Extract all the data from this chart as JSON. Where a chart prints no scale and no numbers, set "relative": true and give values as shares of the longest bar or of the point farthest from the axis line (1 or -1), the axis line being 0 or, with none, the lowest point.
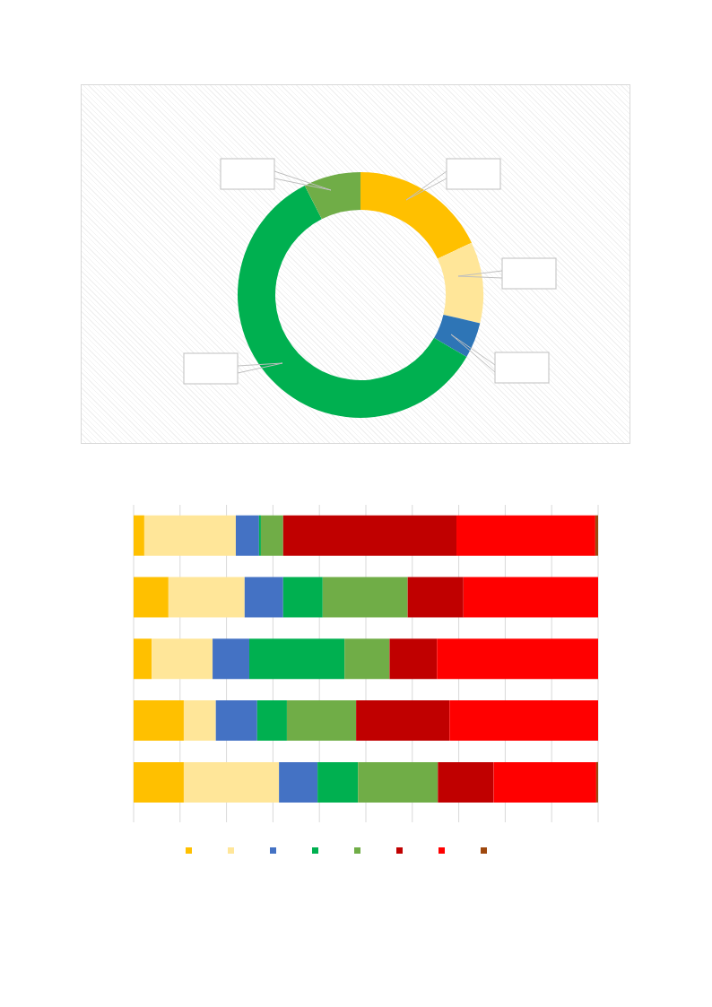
{
  "chart_data": [
    {
      "type": "donut",
      "categories": [
        null,
        null,
        null,
        null,
        null
      ],
      "values": [
        18,
        10.7,
        4.7,
        59.1,
        7.5
      ],
      "colors": [
        "#ffc000",
        "#ffe699",
        "#2e75b6",
        "#00b050",
        "#70ad47"
      ]
    },
    {
      "type": "bar",
      "orientation": "horizontal",
      "stacked": true,
      "relative": true,
      "grid": "x",
      "categories": [
        null,
        null,
        null,
        null,
        null
      ],
      "series": [
        {
          "color": "#ffc000",
          "values": [
            0.023,
            0.075,
            0.039,
            0.108,
            0.108
          ]
        },
        {
          "color": "#ffe699",
          "values": [
            0.197,
            0.164,
            0.131,
            0.069,
            0.205
          ]
        },
        {
          "color": "#4472c4",
          "values": [
            0.05,
            0.083,
            0.079,
            0.089,
            0.083
          ]
        },
        {
          "color": "#00b050",
          "values": [
            0.004,
            0.085,
            0.205,
            0.064,
            0.087
          ]
        },
        {
          "color": "#70ad47",
          "values": [
            0.048,
            0.183,
            0.097,
            0.149,
            0.172
          ]
        },
        {
          "color": "#c00000",
          "values": [
            0.373,
            0.12,
            0.102,
            0.201,
            0.12
          ]
        },
        {
          "color": "#ff0000",
          "values": [
            0.299,
            0.29,
            0.347,
            0.32,
            0.221
          ]
        },
        {
          "color": "#9e480e",
          "values": [
            0.006,
            0,
            0,
            0,
            0.004
          ]
        }
      ]
    }
  ]
}
